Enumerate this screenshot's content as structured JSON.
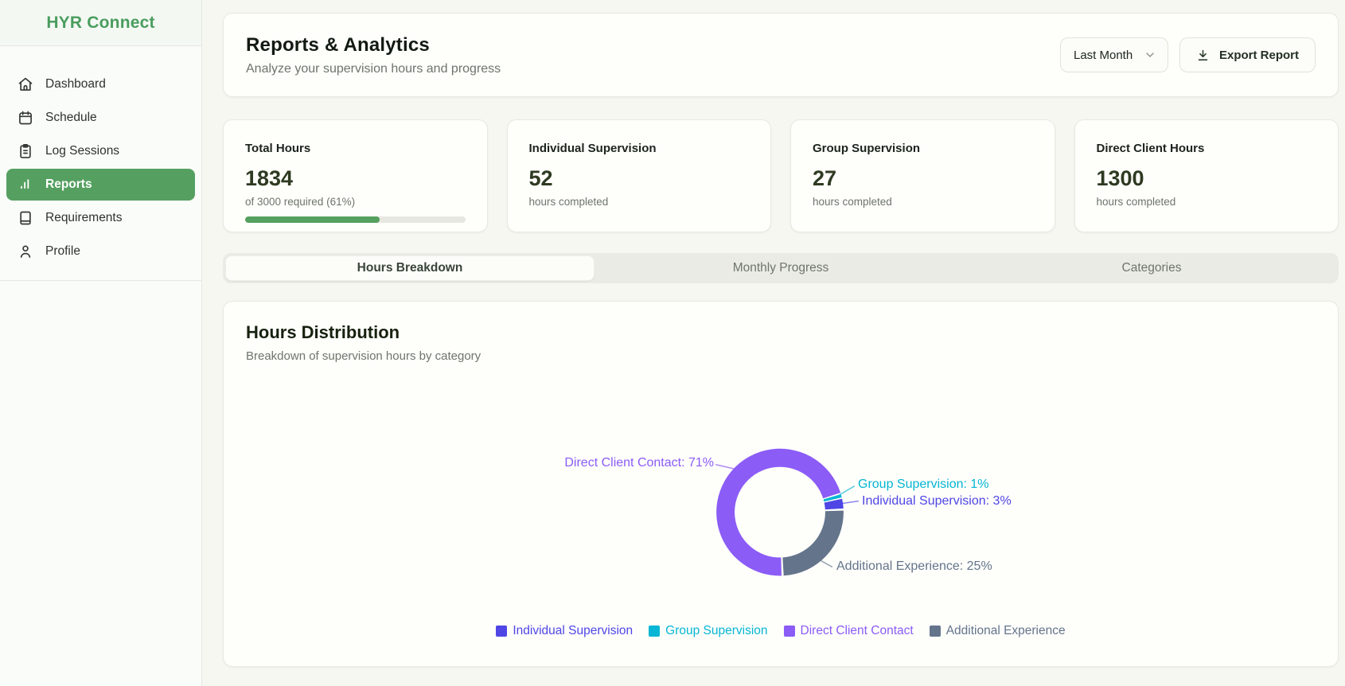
{
  "app": {
    "name": "HYR Connect"
  },
  "sidebar": {
    "items": [
      {
        "label": "Dashboard",
        "icon": "home-icon",
        "active": false
      },
      {
        "label": "Schedule",
        "icon": "calendar-icon",
        "active": false
      },
      {
        "label": "Log Sessions",
        "icon": "clipboard-icon",
        "active": false
      },
      {
        "label": "Reports",
        "icon": "bar-chart-icon",
        "active": true
      },
      {
        "label": "Requirements",
        "icon": "book-icon",
        "active": false
      },
      {
        "label": "Profile",
        "icon": "user-icon",
        "active": false
      }
    ]
  },
  "header": {
    "title": "Reports & Analytics",
    "subtitle": "Analyze your supervision hours and progress",
    "period": {
      "selected": "Last Month"
    },
    "export_button": {
      "label": "Export Report"
    }
  },
  "stats": [
    {
      "label": "Total Hours",
      "value": "1834",
      "sub": "of 3000 required (61%)",
      "progress": 61
    },
    {
      "label": "Individual Supervision",
      "value": "52",
      "sub": "hours completed"
    },
    {
      "label": "Group Supervision",
      "value": "27",
      "sub": "hours completed"
    },
    {
      "label": "Direct Client Hours",
      "value": "1300",
      "sub": "hours completed"
    }
  ],
  "tabs": [
    {
      "label": "Hours Breakdown",
      "active": true
    },
    {
      "label": "Monthly Progress",
      "active": false
    },
    {
      "label": "Categories",
      "active": false
    }
  ],
  "chart_card": {
    "title": "Hours Distribution",
    "subtitle": "Breakdown of supervision hours by category"
  },
  "chart_data": {
    "type": "pie",
    "donut": true,
    "title": "Hours Distribution",
    "slices": [
      {
        "name": "Individual Supervision",
        "percent": 3,
        "color": "#4f46e5"
      },
      {
        "name": "Group Supervision",
        "percent": 1,
        "color": "#06b6d4"
      },
      {
        "name": "Direct Client Contact",
        "percent": 71,
        "color": "#8b5cf6"
      },
      {
        "name": "Additional Experience",
        "percent": 25,
        "color": "#64748b"
      }
    ],
    "label_format": "{name}: {percent}%",
    "legend_position": "bottom",
    "legend_order": [
      "Individual Supervision",
      "Group Supervision",
      "Direct Client Contact",
      "Additional Experience"
    ],
    "start_angle_clockwise_from_top_deg": 87.6,
    "draw_direction": "counterclockwise"
  },
  "colors": {
    "brand_green": "#4a9d5e",
    "active_nav_green": "#55a061",
    "progress_green": "#55a05e",
    "stat_value": "#2e3a21"
  }
}
